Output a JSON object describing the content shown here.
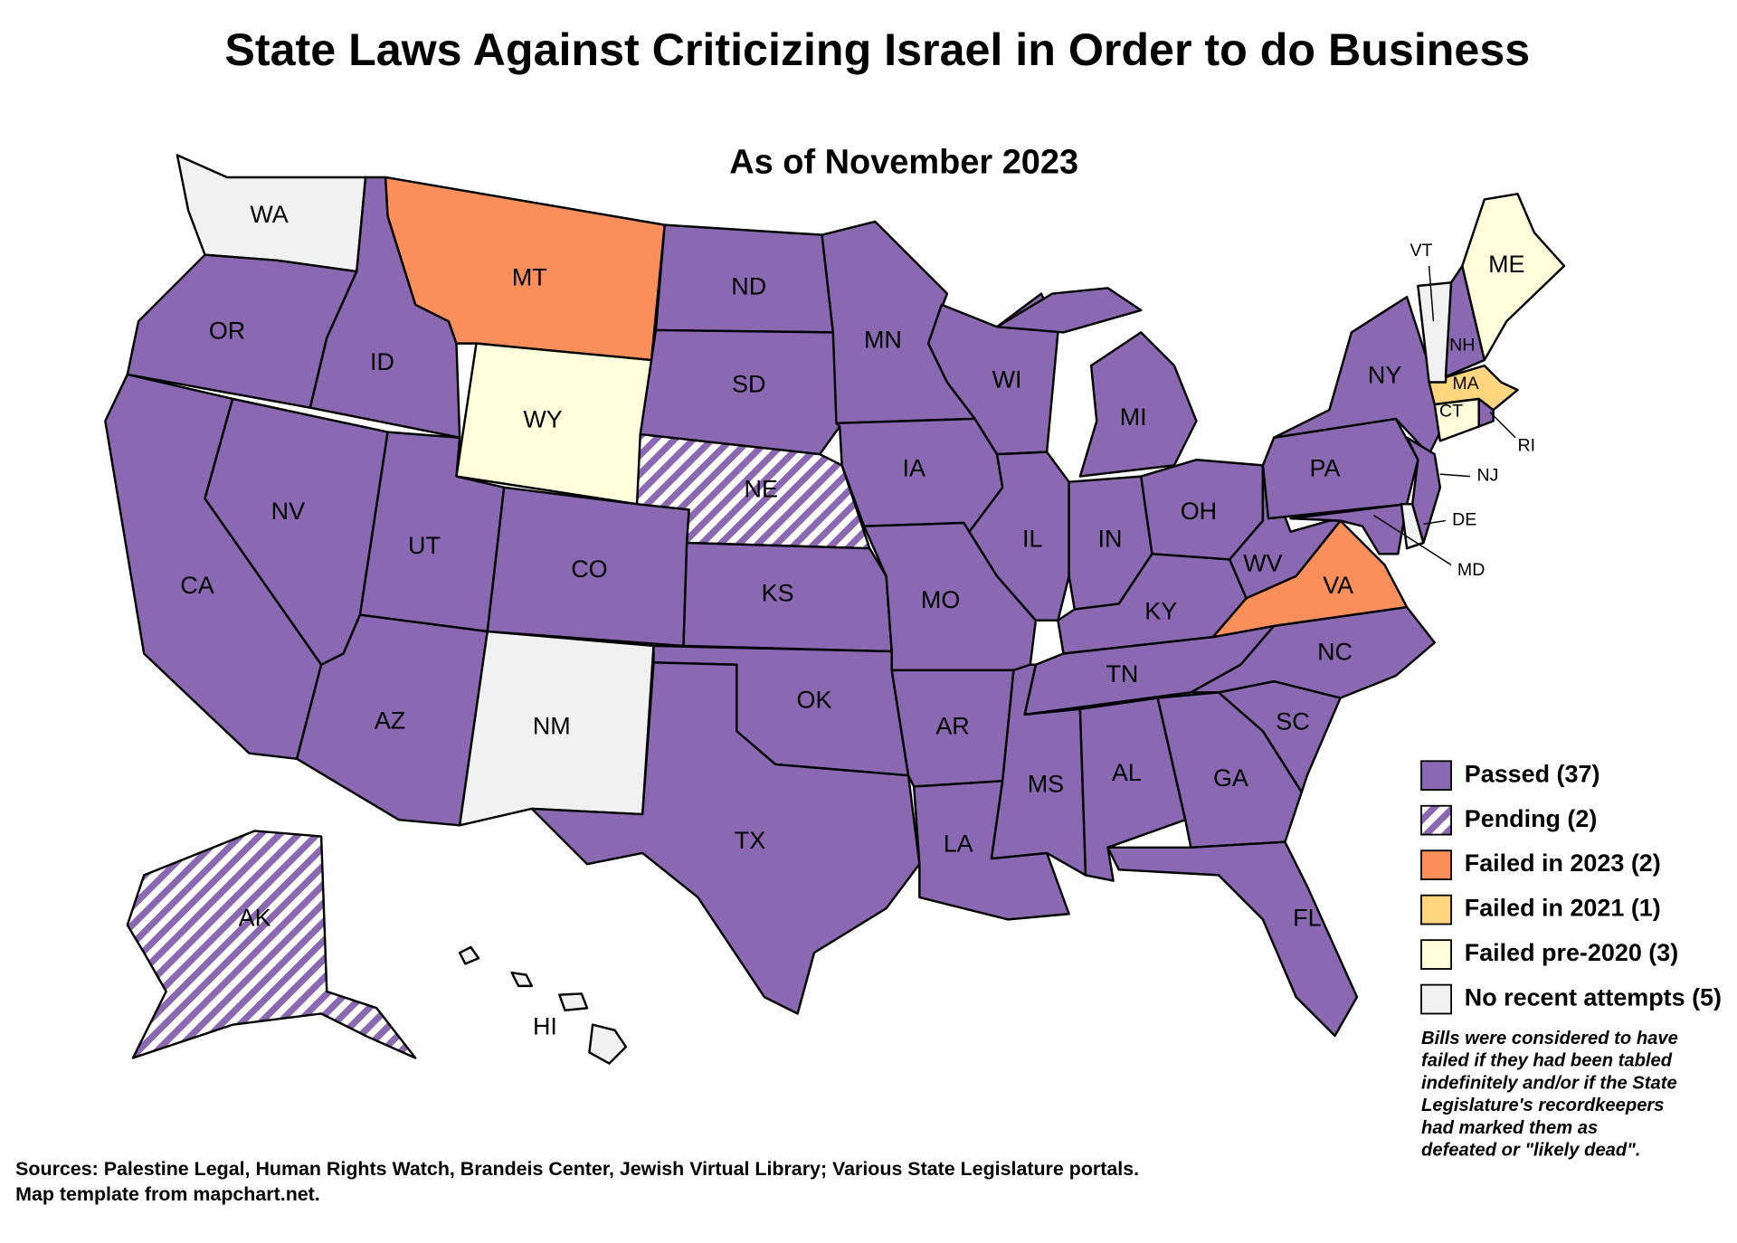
{
  "title": "State Laws Against Criticizing Israel in Order to do Business",
  "subtitle": "As of November 2023",
  "legend": [
    {
      "label": "Passed (37)",
      "color": "#8a69b2"
    },
    {
      "label": "Pending (2)",
      "color": "#8a69b2",
      "hatched": true
    },
    {
      "label": "Failed in 2023 (2)",
      "color": "#fb8f5b"
    },
    {
      "label": "Failed in 2021 (1)",
      "color": "#ffd57f"
    },
    {
      "label": "Failed pre-2020 (3)",
      "color": "#ffffdc"
    },
    {
      "label": "No recent attempts (5)",
      "color": "#f1f1f1"
    }
  ],
  "states": [
    {
      "label": "WA",
      "color": "#f1f1f1"
    },
    {
      "label": "OR",
      "color": "#8a69b2"
    },
    {
      "label": "CA",
      "color": "#8a69b2"
    },
    {
      "label": "ID",
      "color": "#8a69b2"
    },
    {
      "label": "NV",
      "color": "#8a69b2"
    },
    {
      "label": "MT",
      "color": "#fb8f5b"
    },
    {
      "label": "WY",
      "color": "#ffffdc"
    },
    {
      "label": "UT",
      "color": "#8a69b2"
    },
    {
      "label": "AZ",
      "color": "#8a69b2"
    },
    {
      "label": "CO",
      "color": "#8a69b2"
    },
    {
      "label": "NM",
      "color": "#f1f1f1"
    },
    {
      "label": "ND",
      "color": "#8a69b2"
    },
    {
      "label": "SD",
      "color": "#8a69b2"
    },
    {
      "label": "NE",
      "color": "#8a69b2",
      "hatched": true
    },
    {
      "label": "KS",
      "color": "#8a69b2"
    },
    {
      "label": "OK",
      "color": "#8a69b2"
    },
    {
      "label": "TX",
      "color": "#8a69b2"
    },
    {
      "label": "MN",
      "color": "#8a69b2"
    },
    {
      "label": "IA",
      "color": "#8a69b2"
    },
    {
      "label": "MO",
      "color": "#8a69b2"
    },
    {
      "label": "AR",
      "color": "#8a69b2"
    },
    {
      "label": "LA",
      "color": "#8a69b2"
    },
    {
      "label": "WI",
      "color": "#8a69b2"
    },
    {
      "label": "IL",
      "color": "#8a69b2"
    },
    {
      "label": "MI",
      "color": "#8a69b2"
    },
    {
      "label": "IN",
      "color": "#8a69b2"
    },
    {
      "label": "OH",
      "color": "#8a69b2"
    },
    {
      "label": "KY",
      "color": "#8a69b2"
    },
    {
      "label": "TN",
      "color": "#8a69b2"
    },
    {
      "label": "MS",
      "color": "#8a69b2"
    },
    {
      "label": "AL",
      "color": "#8a69b2"
    },
    {
      "label": "GA",
      "color": "#8a69b2"
    },
    {
      "label": "FL",
      "color": "#8a69b2"
    },
    {
      "label": "SC",
      "color": "#8a69b2"
    },
    {
      "label": "NC",
      "color": "#8a69b2"
    },
    {
      "label": "VA",
      "color": "#fb8f5b"
    },
    {
      "label": "WV",
      "color": "#8a69b2"
    },
    {
      "label": "PA",
      "color": "#8a69b2"
    },
    {
      "label": "NY",
      "color": "#8a69b2"
    },
    {
      "label": "MD",
      "color": "#8a69b2"
    },
    {
      "label": "DE",
      "color": "#f1f1f1"
    },
    {
      "label": "NJ",
      "color": "#8a69b2"
    },
    {
      "label": "CT",
      "color": "#ffffdc"
    },
    {
      "label": "RI",
      "color": "#8a69b2"
    },
    {
      "label": "MA",
      "color": "#ffd57f"
    },
    {
      "label": "VT",
      "color": "#f1f1f1"
    },
    {
      "label": "NH",
      "color": "#8a69b2"
    },
    {
      "label": "ME",
      "color": "#ffffdc"
    },
    {
      "label": "AK",
      "color": "#8a69b2",
      "hatched": true
    },
    {
      "label": "HI",
      "color": "#f1f1f1"
    }
  ],
  "note": [
    "Bills were considered to have",
    "failed if they had been tabled",
    "indefinitely and/or if the State",
    "Legislature's recordkeepers",
    "had marked them as",
    "defeated or \"likely dead\"."
  ],
  "sources": [
    "Sources: Palestine Legal, Human Rights Watch, Brandeis Center, Jewish Virtual Library; Various State Legislature portals.",
    "Map template from mapchart.net."
  ]
}
